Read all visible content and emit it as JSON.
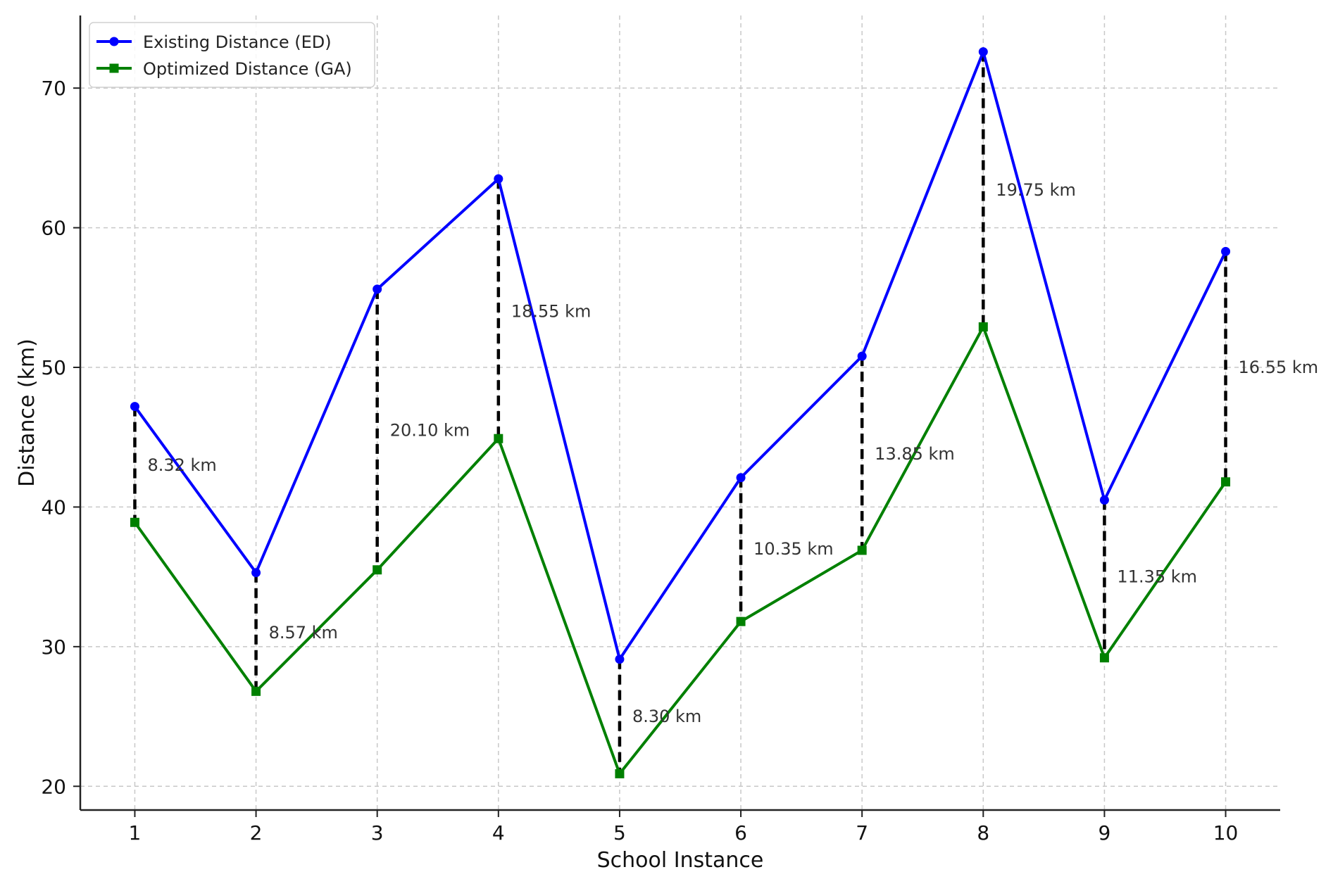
{
  "chart_data": {
    "type": "line",
    "title": "",
    "xlabel": "School Instance",
    "ylabel": "Distance (km)",
    "x": [
      1,
      2,
      3,
      4,
      5,
      6,
      7,
      8,
      9,
      10
    ],
    "xticks": [
      "1",
      "2",
      "3",
      "4",
      "5",
      "6",
      "7",
      "8",
      "9",
      "10"
    ],
    "yticks": [
      "20",
      "30",
      "40",
      "50",
      "60",
      "70"
    ],
    "xlim": [
      0.55,
      10.45
    ],
    "ylim": [
      18.3,
      75.2
    ],
    "grid": true,
    "legend_position": "top-left",
    "series": [
      {
        "name": "Existing Distance (ED)",
        "color": "#0000ff",
        "marker": "circle",
        "values": [
          47.2,
          35.3,
          55.6,
          63.5,
          29.1,
          42.1,
          50.8,
          72.6,
          40.5,
          58.3
        ]
      },
      {
        "name": "Optimized Distance (GA)",
        "color": "#008000",
        "marker": "square",
        "values": [
          38.9,
          26.8,
          35.5,
          44.9,
          20.9,
          31.8,
          36.9,
          52.9,
          29.2,
          41.8
        ]
      }
    ],
    "difference_lines": {
      "color": "#000000",
      "style": "dashed"
    },
    "annotations": [
      {
        "x": 1,
        "y": 43.0,
        "text": "8.32 km"
      },
      {
        "x": 2,
        "y": 31.0,
        "text": "8.57 km"
      },
      {
        "x": 3,
        "y": 45.5,
        "text": "20.10 km"
      },
      {
        "x": 4,
        "y": 54.0,
        "text": "18.55 km"
      },
      {
        "x": 5,
        "y": 25.0,
        "text": "8.30 km"
      },
      {
        "x": 6,
        "y": 37.0,
        "text": "10.35 km"
      },
      {
        "x": 7,
        "y": 43.8,
        "text": "13.85 km"
      },
      {
        "x": 8,
        "y": 62.7,
        "text": "19.75 km"
      },
      {
        "x": 9,
        "y": 35.0,
        "text": "11.35 km"
      },
      {
        "x": 10,
        "y": 50.0,
        "text": "16.55 km"
      }
    ]
  }
}
